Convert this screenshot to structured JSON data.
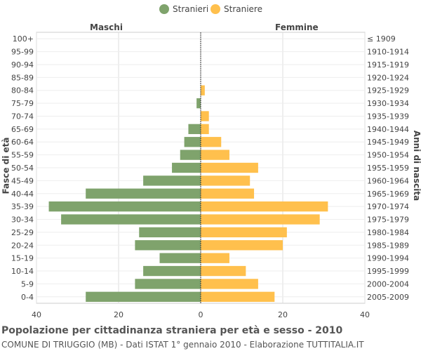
{
  "legend": [
    {
      "label": "Stranieri",
      "color": "#7fa36c"
    },
    {
      "label": "Straniere",
      "color": "#ffc04d"
    }
  ],
  "side_labels": {
    "left": "Maschi",
    "right": "Femmine"
  },
  "y_left_label": "Fasce di età",
  "y_right_label": "Anni di nascita",
  "footer": {
    "title": "Popolazione per cittadinanza straniera per età e sesso - 2010",
    "subtitle": "COMUNE DI TRIUGGIO (MB) - Dati ISTAT 1° gennaio 2010 - Elaborazione TUTTITALIA.IT"
  },
  "chart_data": {
    "type": "bar",
    "orientation": "horizontal-pyramid",
    "categories": [
      "100+",
      "95-99",
      "90-94",
      "85-89",
      "80-84",
      "75-79",
      "70-74",
      "65-69",
      "60-64",
      "55-59",
      "50-54",
      "45-49",
      "40-44",
      "35-39",
      "30-34",
      "25-29",
      "20-24",
      "15-19",
      "10-14",
      "5-9",
      "0-4"
    ],
    "birth_years": [
      "≤ 1909",
      "1910-1914",
      "1915-1919",
      "1920-1924",
      "1925-1929",
      "1930-1934",
      "1935-1939",
      "1940-1944",
      "1945-1949",
      "1950-1954",
      "1955-1959",
      "1960-1964",
      "1965-1969",
      "1970-1974",
      "1975-1979",
      "1980-1984",
      "1985-1989",
      "1990-1994",
      "1995-1999",
      "2000-2004",
      "2005-2009"
    ],
    "series": [
      {
        "name": "Stranieri",
        "values": [
          0,
          0,
          0,
          0,
          0,
          1,
          0,
          3,
          4,
          5,
          7,
          14,
          28,
          37,
          34,
          15,
          16,
          10,
          14,
          16,
          28
        ]
      },
      {
        "name": "Straniere",
        "values": [
          0,
          0,
          0,
          0,
          1,
          0,
          2,
          2,
          5,
          7,
          14,
          12,
          13,
          31,
          29,
          21,
          20,
          7,
          11,
          14,
          18
        ]
      }
    ],
    "x_ticks": [
      "40",
      "20",
      "0",
      "20",
      "40"
    ],
    "xlim": [
      -40,
      40
    ],
    "grid": true
  }
}
